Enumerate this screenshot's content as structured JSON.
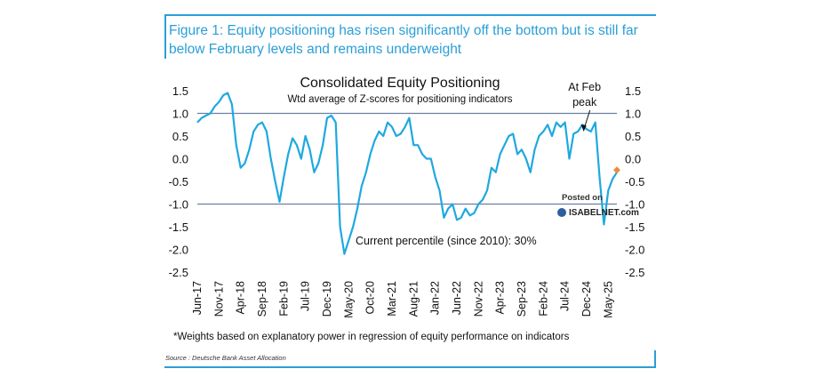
{
  "figure": {
    "title": "Figure 1: Equity positioning has risen significantly off the bottom but is still far below February levels and remains underweight",
    "footnote": "*Weights based on explanatory power in regression of equity performance on indicators",
    "source": "Source : Deutsche Bank Asset Allocation"
  },
  "watermark": {
    "line1": "Posted on",
    "line2": "ISABELNET.com"
  },
  "colors": {
    "accent": "#2a9fd6",
    "series": "#1fa8e0",
    "latest": "#f08a3c",
    "refline": "#6d7fa3"
  },
  "chart_data": {
    "type": "line",
    "title": "Consolidated Equity Positioning",
    "subtitle": "Wtd average of Z-scores for positioning indicators",
    "xlabel": "",
    "ylabel": "",
    "ylim": [
      -2.5,
      1.5
    ],
    "yticks": [
      "1.5",
      "1.0",
      "0.5",
      "0.0",
      "-0.5",
      "-1.0",
      "-1.5",
      "-2.0",
      "-2.5"
    ],
    "xticks": [
      "Jun-17",
      "Nov-17",
      "Apr-18",
      "Sep-18",
      "Feb-19",
      "Jul-19",
      "Dec-19",
      "May-20",
      "Oct-20",
      "Mar-21",
      "Aug-21",
      "Jan-22",
      "Jun-22",
      "Nov-22",
      "Apr-23",
      "Sep-23",
      "Feb-24",
      "Jul-24",
      "Dec-24",
      "May-25"
    ],
    "reference_lines": [
      1.0,
      -1.0
    ],
    "annotations": [
      {
        "text": "At Feb peak",
        "lines": [
          "At Feb",
          "peak"
        ],
        "x": "Feb-25",
        "y": 0.75
      },
      {
        "text": "Current percentile (since 2010): 30%",
        "x": "Jun-20",
        "y": -1.8
      }
    ],
    "latest_point": {
      "x": "Jul-25",
      "y": -0.25
    },
    "series": [
      {
        "x": [
          "Jun-17",
          "Jul-17",
          "Aug-17",
          "Sep-17",
          "Oct-17",
          "Nov-17",
          "Dec-17",
          "Jan-18",
          "Feb-18",
          "Mar-18",
          "Apr-18",
          "May-18",
          "Jun-18",
          "Jul-18",
          "Aug-18",
          "Sep-18",
          "Oct-18",
          "Nov-18",
          "Dec-18",
          "Jan-19",
          "Feb-19",
          "Mar-19",
          "Apr-19",
          "May-19",
          "Jun-19",
          "Jul-19",
          "Aug-19",
          "Sep-19",
          "Oct-19",
          "Nov-19",
          "Dec-19",
          "Jan-20",
          "Feb-20",
          "Mar-20",
          "Apr-20",
          "May-20",
          "Jun-20",
          "Jul-20",
          "Aug-20",
          "Sep-20",
          "Oct-20",
          "Nov-20",
          "Dec-20",
          "Jan-21",
          "Feb-21",
          "Mar-21",
          "Apr-21",
          "May-21",
          "Jun-21",
          "Jul-21",
          "Aug-21",
          "Sep-21",
          "Oct-21",
          "Nov-21",
          "Dec-21",
          "Jan-22",
          "Feb-22",
          "Mar-22",
          "Apr-22",
          "May-22",
          "Jun-22",
          "Jul-22",
          "Aug-22",
          "Sep-22",
          "Oct-22",
          "Nov-22",
          "Dec-22",
          "Jan-23",
          "Feb-23",
          "Mar-23",
          "Apr-23",
          "May-23",
          "Jun-23",
          "Jul-23",
          "Aug-23",
          "Sep-23",
          "Oct-23",
          "Nov-23",
          "Dec-23",
          "Jan-24",
          "Feb-24",
          "Mar-24",
          "Apr-24",
          "May-24",
          "Jun-24",
          "Jul-24",
          "Aug-24",
          "Sep-24",
          "Oct-24",
          "Nov-24",
          "Dec-24",
          "Jan-25",
          "Feb-25",
          "Mar-25",
          "Apr-25",
          "May-25",
          "Jun-25",
          "Jul-25"
        ],
        "values": [
          0.8,
          0.9,
          0.95,
          1.0,
          1.15,
          1.25,
          1.4,
          1.45,
          1.2,
          0.3,
          -0.2,
          -0.1,
          0.2,
          0.6,
          0.75,
          0.8,
          0.6,
          0.0,
          -0.5,
          -0.95,
          -0.4,
          0.1,
          0.45,
          0.3,
          0.0,
          0.5,
          0.2,
          -0.3,
          -0.1,
          0.3,
          0.9,
          0.95,
          0.8,
          -1.5,
          -2.1,
          -1.8,
          -1.5,
          -1.1,
          -0.6,
          -0.3,
          0.1,
          0.4,
          0.6,
          0.5,
          0.8,
          0.7,
          0.5,
          0.55,
          0.7,
          0.9,
          0.3,
          0.3,
          0.1,
          0.0,
          0.0,
          -0.4,
          -0.7,
          -1.3,
          -1.1,
          -1.0,
          -1.35,
          -1.3,
          -1.1,
          -1.25,
          -1.2,
          -1.0,
          -0.9,
          -0.7,
          -0.2,
          -0.3,
          0.1,
          0.3,
          0.5,
          0.55,
          0.1,
          0.2,
          0.0,
          -0.3,
          0.2,
          0.5,
          0.6,
          0.75,
          0.5,
          0.8,
          0.7,
          0.8,
          0.0,
          0.55,
          0.6,
          0.75,
          0.65,
          0.6,
          0.8,
          -0.4,
          -1.45,
          -0.7,
          -0.45,
          -0.3
        ]
      }
    ]
  }
}
